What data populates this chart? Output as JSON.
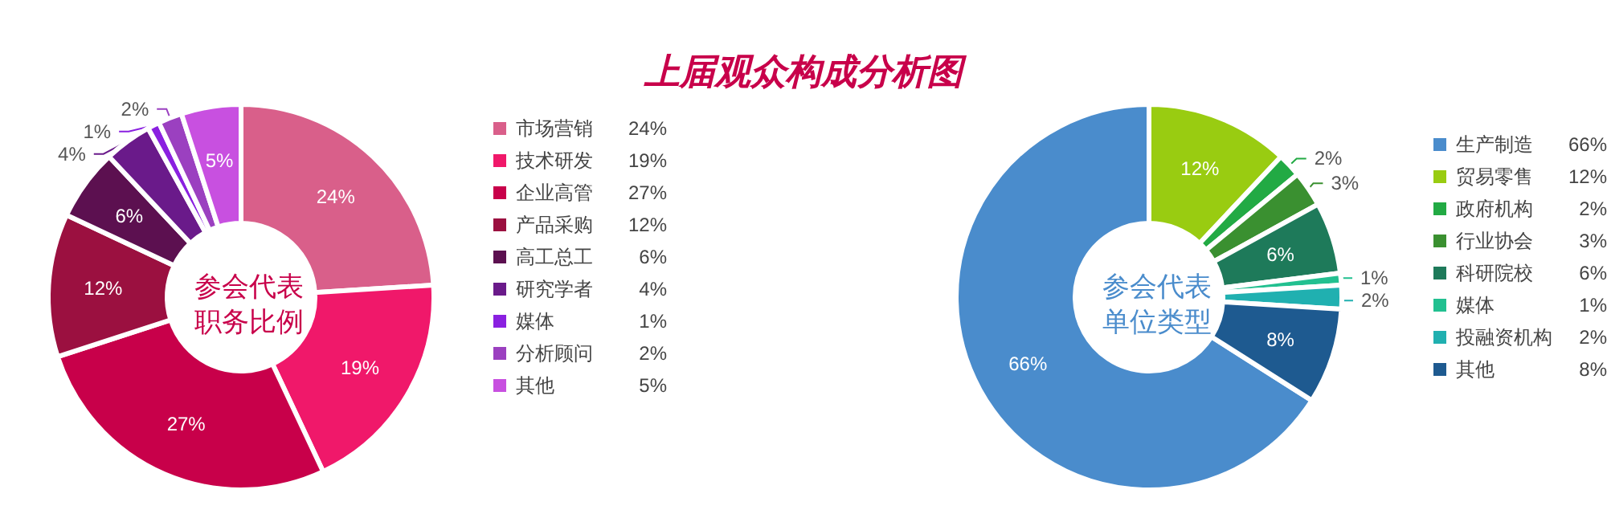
{
  "chart_data": [
    {
      "type": "donut",
      "title": "参会代表职务比例",
      "annotations": [
        "上届观众构成分析图"
      ],
      "categories": [
        "市场营销",
        "技术研发",
        "企业高管",
        "产品采购",
        "高工总工",
        "研究学者",
        "媒体",
        "分析顾问",
        "其他"
      ],
      "values": [
        24,
        19,
        27,
        12,
        6,
        4,
        1,
        2,
        5
      ],
      "colors": [
        "#d95f8a",
        "#f0186a",
        "#c8004a",
        "#9b1040",
        "#5c1050",
        "#6a1a8a",
        "#8a20e0",
        "#9b40c0",
        "#c850e0"
      ],
      "value_labels": [
        "24%",
        "19%",
        "27%",
        "12%",
        "6%",
        "4%",
        "1%",
        "2%",
        "5%"
      ],
      "legend": "right"
    },
    {
      "type": "donut",
      "title": "参会代表单位类型",
      "categories": [
        "生产制造",
        "贸易零售",
        "政府机构",
        "行业协会",
        "科研院校",
        "媒体",
        "投融资机构",
        "其他"
      ],
      "values": [
        66,
        12,
        2,
        3,
        6,
        1,
        2,
        8
      ],
      "colors": [
        "#4a8ccc",
        "#99cc11",
        "#22aa44",
        "#3a9030",
        "#1e7a5a",
        "#22c090",
        "#20b0b0",
        "#1e5a90"
      ],
      "value_labels": [
        "66%",
        "12%",
        "2%",
        "3%",
        "6%",
        "1%",
        "2%",
        "8%"
      ],
      "legend": "right"
    }
  ]
}
